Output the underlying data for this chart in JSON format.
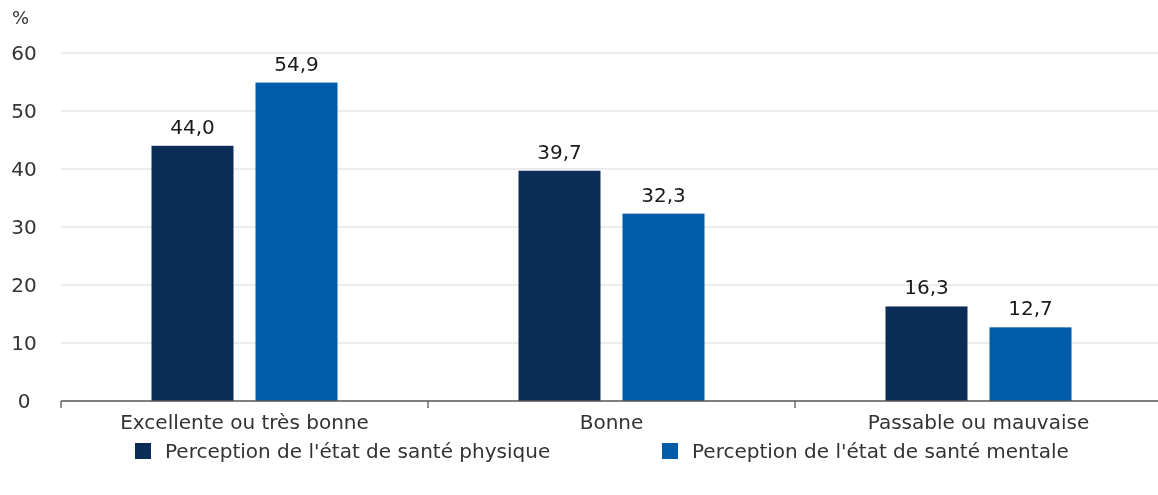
{
  "chart_data": {
    "type": "bar",
    "ylabel": "%",
    "categories": [
      "Excellente ou très bonne",
      "Bonne",
      "Passable ou mauvaise"
    ],
    "series": [
      {
        "name": "Perception de l'état de santé physique",
        "color": "#0a2c57",
        "values": [
          44.0,
          39.7,
          16.3
        ]
      },
      {
        "name": "Perception de l'état de santé mentale",
        "color": "#005ba9",
        "values": [
          54.9,
          32.3,
          12.7
        ]
      }
    ],
    "value_labels": [
      [
        "44,0",
        "39,7",
        "16,3"
      ],
      [
        "54,9",
        "32,3",
        "12,7"
      ]
    ],
    "ylim": [
      0,
      60
    ],
    "yticks": [
      0,
      10,
      20,
      30,
      40,
      50,
      60
    ],
    "grid": "y",
    "legend": "bottom"
  }
}
